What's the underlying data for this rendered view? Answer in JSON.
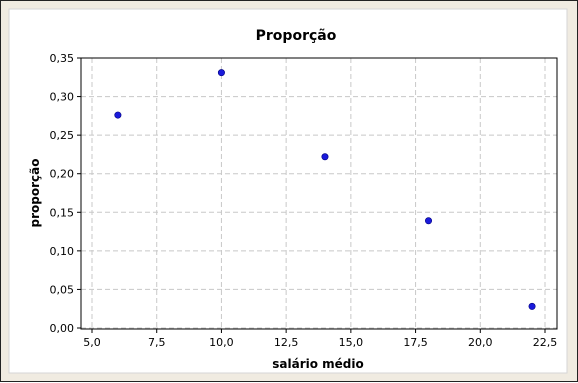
{
  "chart_data": {
    "type": "scatter",
    "title": "Proporção",
    "xlabel": "salário médio",
    "ylabel": "proporção",
    "xlim": [
      5.0,
      22.5
    ],
    "ylim": [
      0.0,
      0.35
    ],
    "x_ticks": [
      "5,0",
      "7,5",
      "10,0",
      "12,5",
      "15,0",
      "17,5",
      "20,0",
      "22,5"
    ],
    "y_ticks": [
      "0,00",
      "0,05",
      "0,10",
      "0,15",
      "0,20",
      "0,25",
      "0,30",
      "0,35"
    ],
    "grid": true,
    "series": [
      {
        "points": [
          {
            "x": 6,
            "y": 0.276
          },
          {
            "x": 10,
            "y": 0.331
          },
          {
            "x": 14,
            "y": 0.222
          },
          {
            "x": 18,
            "y": 0.139
          },
          {
            "x": 22,
            "y": 0.028
          }
        ],
        "color": "#1a1adb"
      }
    ]
  }
}
